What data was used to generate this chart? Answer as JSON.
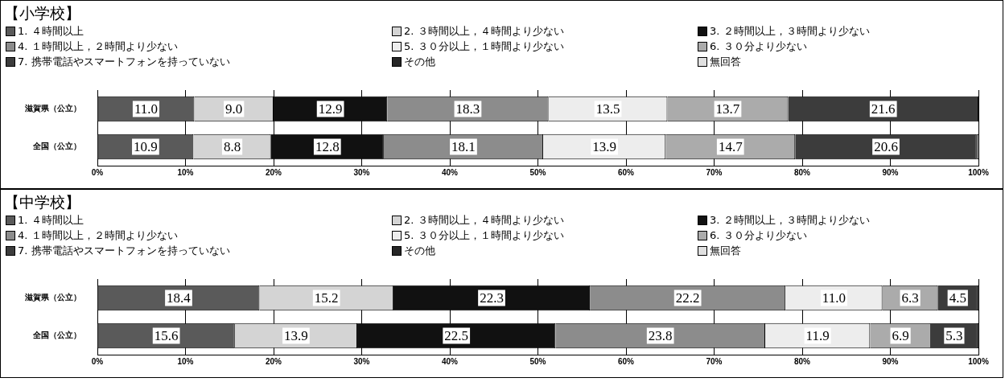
{
  "chart_data": [
    {
      "type": "bar",
      "title": "【小学校】",
      "orientation": "horizontal",
      "stacked": true,
      "legend": "top",
      "grid": "x",
      "categories": [
        "滋賀県（公立）",
        "全国（公立）"
      ],
      "xlim": [
        0,
        100
      ],
      "xticks": [
        {
          "value": 0,
          "label": "0%"
        },
        {
          "value": 10,
          "label": "10%"
        },
        {
          "value": 20,
          "label": "20%"
        },
        {
          "value": 30,
          "label": "30%"
        },
        {
          "value": 40,
          "label": "40%"
        },
        {
          "value": 50,
          "label": "50%"
        },
        {
          "value": 60,
          "label": "60%"
        },
        {
          "value": 70,
          "label": "70%"
        },
        {
          "value": 80,
          "label": "80%"
        },
        {
          "value": 90,
          "label": "90%"
        },
        {
          "value": 100,
          "label": "100%"
        }
      ],
      "series": [
        {
          "name": "1. ４時間以上",
          "color": "#5a5a5a",
          "values": [
            11.0,
            10.9
          ],
          "value_labels": [
            "11.0",
            "10.9"
          ]
        },
        {
          "name": "2. ３時間以上，４時間より少ない",
          "color": "#d4d4d4",
          "values": [
            9.0,
            8.8
          ],
          "value_labels": [
            "9.0",
            "8.8"
          ]
        },
        {
          "name": "3. ２時間以上，３時間より少ない",
          "color": "#111111",
          "values": [
            12.9,
            12.8
          ],
          "value_labels": [
            "12.9",
            "12.8"
          ]
        },
        {
          "name": "4. １時間以上，２時間より少ない",
          "color": "#8c8c8c",
          "values": [
            18.3,
            18.1
          ],
          "value_labels": [
            "18.3",
            "18.1"
          ]
        },
        {
          "name": "5. ３０分以上，１時間より少ない",
          "color": "#ededed",
          "values": [
            13.5,
            13.9
          ],
          "value_labels": [
            "13.5",
            "13.9"
          ]
        },
        {
          "name": "6. ３０分より少ない",
          "color": "#ababab",
          "values": [
            13.7,
            14.7
          ],
          "value_labels": [
            "13.7",
            "14.7"
          ]
        },
        {
          "name": "7. 携帯電話やスマートフォンを持っていない",
          "color": "#3c3c3c",
          "values": [
            21.6,
            20.6
          ],
          "value_labels": [
            "21.6",
            "20.6"
          ]
        },
        {
          "name": "その他",
          "color": "#262626",
          "values": [
            0.0,
            0.1
          ],
          "value_labels": [
            null,
            null
          ]
        },
        {
          "name": "無回答",
          "color": "#e0e0e0",
          "values": [
            0.0,
            0.1
          ],
          "value_labels": [
            null,
            null
          ]
        }
      ]
    },
    {
      "type": "bar",
      "title": "【中学校】",
      "orientation": "horizontal",
      "stacked": true,
      "legend": "top",
      "grid": "x",
      "categories": [
        "滋賀県（公立）",
        "全国（公立）"
      ],
      "xlim": [
        0,
        100
      ],
      "xticks": [
        {
          "value": 0,
          "label": "0%"
        },
        {
          "value": 10,
          "label": "10%"
        },
        {
          "value": 20,
          "label": "20%"
        },
        {
          "value": 30,
          "label": "30%"
        },
        {
          "value": 40,
          "label": "40%"
        },
        {
          "value": 50,
          "label": "50%"
        },
        {
          "value": 60,
          "label": "60%"
        },
        {
          "value": 70,
          "label": "70%"
        },
        {
          "value": 80,
          "label": "80%"
        },
        {
          "value": 90,
          "label": "90%"
        },
        {
          "value": 100,
          "label": "100%"
        }
      ],
      "series": [
        {
          "name": "1. ４時間以上",
          "color": "#5a5a5a",
          "values": [
            18.4,
            15.6
          ],
          "value_labels": [
            "18.4",
            "15.6"
          ]
        },
        {
          "name": "2. ３時間以上，４時間より少ない",
          "color": "#d4d4d4",
          "values": [
            15.2,
            13.9
          ],
          "value_labels": [
            "15.2",
            "13.9"
          ]
        },
        {
          "name": "3. ２時間以上，３時間より少ない",
          "color": "#111111",
          "values": [
            22.3,
            22.5
          ],
          "value_labels": [
            "22.3",
            "22.5"
          ]
        },
        {
          "name": "4. １時間以上，２時間より少ない",
          "color": "#8c8c8c",
          "values": [
            22.2,
            23.8
          ],
          "value_labels": [
            "22.2",
            "23.8"
          ]
        },
        {
          "name": "5. ３０分以上，１時間より少ない",
          "color": "#ededed",
          "values": [
            11.0,
            11.9
          ],
          "value_labels": [
            "11.0",
            "11.9"
          ]
        },
        {
          "name": "6. ３０分より少ない",
          "color": "#ababab",
          "values": [
            6.3,
            6.9
          ],
          "value_labels": [
            "6.3",
            "6.9"
          ]
        },
        {
          "name": "7. 携帯電話やスマートフォンを持っていない",
          "color": "#3c3c3c",
          "values": [
            4.5,
            5.3
          ],
          "value_labels": [
            "4.5",
            "5.3"
          ]
        },
        {
          "name": "その他",
          "color": "#262626",
          "values": [
            0.1,
            0.1
          ],
          "value_labels": [
            null,
            null
          ]
        },
        {
          "name": "無回答",
          "color": "#e0e0e0",
          "values": [
            0.0,
            0.0
          ],
          "value_labels": [
            null,
            null
          ]
        }
      ]
    }
  ]
}
